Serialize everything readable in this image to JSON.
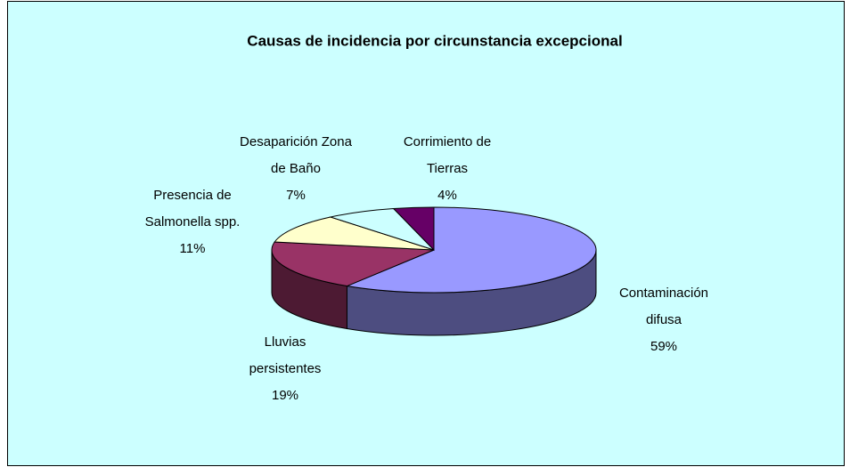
{
  "chart_data": {
    "type": "pie3d",
    "title": "Causas de incidencia por circunstancia excepcional",
    "categories": [
      "Contaminación difusa",
      "Lluvias persistentes",
      "Presencia de Salmonella spp.",
      "Desaparición Zona de Baño",
      "Corrimiento de Tierras"
    ],
    "values": [
      59,
      19,
      11,
      7,
      4
    ],
    "value_labels": [
      "59%",
      "19%",
      "11%",
      "7%",
      "4%"
    ],
    "colors": [
      "#9999ff",
      "#993366",
      "#ffffcc",
      "#ccffff",
      "#660066"
    ]
  }
}
